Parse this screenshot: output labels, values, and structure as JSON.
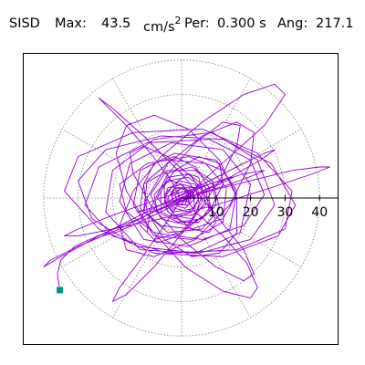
{
  "header": {
    "station": "SISD",
    "max_label": "Max:",
    "max_value": "43.5",
    "max_unit": "cm/s",
    "max_unit_exp": "2",
    "per_label": "Per:",
    "per_value": "0.300 s",
    "ang_label": "Ang:",
    "ang_value": "217.1"
  },
  "chart_data": {
    "type": "polar-orbit",
    "title": "SISD Max: 43.5 cm/s2 Per: 0.300 s Ang: 217.1",
    "rings": [
      10,
      20,
      30,
      40
    ],
    "tick_labels": [
      "10",
      "20",
      "30",
      "40"
    ],
    "xlim": [
      -46,
      46
    ],
    "ylim": [
      -46,
      46
    ],
    "grid": true,
    "colors": {
      "trace": "#9400d3",
      "end_marker": "#009a7a",
      "grid": "#808080",
      "axis": "#000000"
    },
    "end_point": {
      "x": -35.3,
      "y": -26.7
    },
    "trace": [
      [
        0,
        0
      ],
      [
        2,
        1
      ],
      [
        1,
        -2
      ],
      [
        -3,
        -1
      ],
      [
        -2,
        3
      ],
      [
        3,
        2
      ],
      [
        4,
        -3
      ],
      [
        -2,
        -4
      ],
      [
        -5,
        1
      ],
      [
        -1,
        5
      ],
      [
        4,
        4
      ],
      [
        6,
        -1
      ],
      [
        3,
        -6
      ],
      [
        -3,
        -5
      ],
      [
        -7,
        0
      ],
      [
        -4,
        6
      ],
      [
        2,
        7
      ],
      [
        7,
        3
      ],
      [
        8,
        -4
      ],
      [
        2,
        -8
      ],
      [
        -6,
        -6
      ],
      [
        -9,
        1
      ],
      [
        -5,
        7
      ],
      [
        3,
        9
      ],
      [
        9,
        5
      ],
      [
        11,
        -3
      ],
      [
        6,
        -9
      ],
      [
        -4,
        -10
      ],
      [
        -11,
        -4
      ],
      [
        -10,
        5
      ],
      [
        -3,
        11
      ],
      [
        7,
        10
      ],
      [
        13,
        3
      ],
      [
        12,
        -7
      ],
      [
        3,
        -12
      ],
      [
        -8,
        -11
      ],
      [
        -14,
        -2
      ],
      [
        -12,
        8
      ],
      [
        -2,
        13
      ],
      [
        10,
        11
      ],
      [
        16,
        2
      ],
      [
        14,
        -9
      ],
      [
        2,
        -14
      ],
      [
        -11,
        -12
      ],
      [
        -18,
        -1
      ],
      [
        -15,
        10
      ],
      [
        -3,
        16
      ],
      [
        12,
        14
      ],
      [
        20,
        4
      ],
      [
        17,
        -10
      ],
      [
        4,
        -16
      ],
      [
        -12,
        -15
      ],
      [
        -22,
        -4
      ],
      [
        -20,
        8
      ],
      [
        -8,
        17
      ],
      [
        9,
        19
      ],
      [
        22,
        11
      ],
      [
        27,
        -2
      ],
      [
        20,
        -12
      ],
      [
        5,
        -16
      ],
      [
        -13,
        -14
      ],
      [
        -26,
        -6
      ],
      [
        -30,
        5
      ],
      [
        -22,
        14
      ],
      [
        -6,
        18
      ],
      [
        12,
        17
      ],
      [
        26,
        10
      ],
      [
        33,
        -2
      ],
      [
        28,
        -11
      ],
      [
        12,
        -17
      ],
      [
        -8,
        -16
      ],
      [
        -24,
        -9
      ],
      [
        -34,
        2
      ],
      [
        -30,
        12
      ],
      [
        -14,
        19
      ],
      [
        6,
        20
      ],
      [
        22,
        13
      ],
      [
        32,
        2
      ],
      [
        30,
        -9
      ],
      [
        16,
        -15
      ],
      [
        -4,
        -16
      ],
      [
        -20,
        -11
      ],
      [
        -28,
        -2
      ],
      [
        -24,
        9
      ],
      [
        -10,
        16
      ],
      [
        8,
        17
      ],
      [
        20,
        11
      ],
      [
        24,
        1
      ],
      [
        18,
        -8
      ],
      [
        6,
        -12
      ],
      [
        -8,
        -10
      ],
      [
        -16,
        -4
      ],
      [
        -18,
        4
      ],
      [
        -10,
        10
      ],
      [
        2,
        12
      ],
      [
        12,
        8
      ],
      [
        16,
        1
      ],
      [
        12,
        -6
      ],
      [
        3,
        -9
      ],
      [
        -6,
        -8
      ],
      [
        -12,
        -3
      ],
      [
        -11,
        4
      ],
      [
        -4,
        8
      ],
      [
        4,
        8
      ],
      [
        9,
        4
      ],
      [
        10,
        -2
      ],
      [
        6,
        -6
      ],
      [
        -1,
        -7
      ],
      [
        -7,
        -4
      ],
      [
        -8,
        1
      ],
      [
        -4,
        5
      ],
      [
        2,
        6
      ],
      [
        6,
        3
      ],
      [
        7,
        -2
      ],
      [
        3,
        -5
      ],
      [
        -2,
        -5
      ],
      [
        -5,
        -1
      ],
      [
        -4,
        3
      ],
      [
        0,
        4
      ],
      [
        4,
        3
      ],
      [
        5,
        -1
      ],
      [
        2,
        -4
      ],
      [
        -2,
        -3
      ],
      [
        -4,
        0
      ],
      [
        -2,
        3
      ],
      [
        2,
        3
      ],
      [
        4,
        0
      ],
      [
        1,
        -3
      ],
      [
        -2,
        -2
      ],
      [
        -3,
        1
      ],
      [
        0,
        3
      ],
      [
        3,
        1
      ],
      [
        2,
        -2
      ],
      [
        -1,
        -2
      ],
      [
        -2,
        1
      ],
      [
        1,
        2
      ],
      [
        2,
        0
      ],
      [
        0,
        -1
      ],
      [
        5,
        4
      ],
      [
        14,
        12
      ],
      [
        24,
        21
      ],
      [
        30,
        30
      ],
      [
        27,
        33
      ],
      [
        18,
        30
      ],
      [
        6,
        22
      ],
      [
        -6,
        12
      ],
      [
        -14,
        2
      ],
      [
        -18,
        -8
      ],
      [
        -16,
        -15
      ],
      [
        -8,
        -17
      ],
      [
        4,
        -12
      ],
      [
        14,
        -2
      ],
      [
        20,
        10
      ],
      [
        21,
        19
      ],
      [
        16,
        22
      ],
      [
        6,
        18
      ],
      [
        -4,
        10
      ],
      [
        -10,
        0
      ],
      [
        -12,
        -8
      ],
      [
        -8,
        -12
      ],
      [
        0,
        -10
      ],
      [
        8,
        -4
      ],
      [
        12,
        4
      ],
      [
        11,
        10
      ],
      [
        5,
        12
      ],
      [
        -2,
        8
      ],
      [
        -6,
        2
      ],
      [
        -6,
        -4
      ],
      [
        -2,
        -6
      ],
      [
        3,
        -4
      ],
      [
        5,
        0
      ],
      [
        4,
        3
      ],
      [
        0,
        3
      ],
      [
        -2,
        1
      ],
      [
        -1,
        -1
      ],
      [
        0,
        0
      ],
      [
        -6,
        -3
      ],
      [
        -18,
        -9
      ],
      [
        -30,
        -14
      ],
      [
        -38,
        -18
      ],
      [
        -40,
        -20
      ],
      [
        -35,
        -17
      ],
      [
        -24,
        -11
      ],
      [
        -10,
        -4
      ],
      [
        4,
        3
      ],
      [
        16,
        9
      ],
      [
        24,
        13
      ],
      [
        27,
        14
      ],
      [
        23,
        11
      ],
      [
        14,
        6
      ],
      [
        2,
        0
      ],
      [
        -10,
        -6
      ],
      [
        -19,
        -10
      ],
      [
        -23,
        -11
      ],
      [
        -20,
        -9
      ],
      [
        -12,
        -5
      ],
      [
        -2,
        0
      ],
      [
        8,
        4
      ],
      [
        14,
        6
      ],
      [
        15,
        6
      ],
      [
        11,
        4
      ],
      [
        4,
        1
      ],
      [
        -3,
        -2
      ],
      [
        -8,
        -4
      ],
      [
        -9,
        -4
      ],
      [
        -6,
        -3
      ],
      [
        -2,
        -1
      ],
      [
        2,
        1
      ],
      [
        4,
        2
      ],
      [
        3,
        1
      ],
      [
        1,
        0
      ],
      [
        4,
        -4
      ],
      [
        12,
        -11
      ],
      [
        19,
        -19
      ],
      [
        22,
        -26
      ],
      [
        20,
        -29
      ],
      [
        12,
        -27
      ],
      [
        1,
        -20
      ],
      [
        -9,
        -9
      ],
      [
        -16,
        2
      ],
      [
        -19,
        13
      ],
      [
        -16,
        21
      ],
      [
        -8,
        24
      ],
      [
        2,
        20
      ],
      [
        11,
        11
      ],
      [
        16,
        0
      ],
      [
        16,
        -10
      ],
      [
        11,
        -16
      ],
      [
        3,
        -17
      ],
      [
        -5,
        -12
      ],
      [
        -10,
        -4
      ],
      [
        -11,
        4
      ],
      [
        -8,
        10
      ],
      [
        -2,
        12
      ],
      [
        4,
        9
      ],
      [
        8,
        3
      ],
      [
        8,
        -3
      ],
      [
        5,
        -7
      ],
      [
        0,
        -7
      ],
      [
        -4,
        -4
      ],
      [
        -5,
        0
      ],
      [
        -3,
        3
      ],
      [
        0,
        4
      ],
      [
        2,
        2
      ],
      [
        2,
        0
      ],
      [
        0,
        -1
      ],
      [
        -3,
        5
      ],
      [
        -9,
        13
      ],
      [
        -16,
        21
      ],
      [
        -22,
        27
      ],
      [
        -24,
        29
      ],
      [
        -20,
        26
      ],
      [
        -11,
        18
      ],
      [
        0,
        7
      ],
      [
        10,
        -5
      ],
      [
        18,
        -15
      ],
      [
        21,
        -22
      ],
      [
        18,
        -24
      ],
      [
        10,
        -20
      ],
      [
        0,
        -12
      ],
      [
        -9,
        -2
      ],
      [
        -14,
        7
      ],
      [
        -15,
        13
      ],
      [
        -11,
        15
      ],
      [
        -4,
        12
      ],
      [
        3,
        6
      ],
      [
        8,
        -1
      ],
      [
        10,
        -7
      ],
      [
        8,
        -10
      ],
      [
        3,
        -9
      ],
      [
        -2,
        -5
      ],
      [
        -5,
        0
      ],
      [
        -5,
        4
      ],
      [
        -3,
        5
      ],
      [
        0,
        4
      ],
      [
        2,
        1
      ],
      [
        2,
        -1
      ],
      [
        0,
        -1
      ],
      [
        8,
        2
      ],
      [
        20,
        5
      ],
      [
        32,
        8
      ],
      [
        40,
        9
      ],
      [
        43,
        9
      ],
      [
        38,
        7
      ],
      [
        26,
        3
      ],
      [
        10,
        -2
      ],
      [
        -6,
        -6
      ],
      [
        -20,
        -9
      ],
      [
        -30,
        -11
      ],
      [
        -34,
        -11
      ],
      [
        -30,
        -9
      ],
      [
        -20,
        -5
      ],
      [
        -6,
        0
      ],
      [
        8,
        4
      ],
      [
        18,
        7
      ],
      [
        24,
        8
      ],
      [
        22,
        7
      ],
      [
        14,
        4
      ],
      [
        4,
        1
      ],
      [
        -6,
        -2
      ],
      [
        -12,
        -4
      ],
      [
        -13,
        -4
      ],
      [
        -9,
        -3
      ],
      [
        -3,
        -1
      ],
      [
        2,
        1
      ],
      [
        5,
        1
      ],
      [
        4,
        1
      ],
      [
        2,
        0
      ],
      [
        0,
        0
      ],
      [
        -5,
        -8
      ],
      [
        -12,
        -18
      ],
      [
        -18,
        -26
      ],
      [
        -20,
        -30
      ],
      [
        -16,
        -28
      ],
      [
        -8,
        -20
      ],
      [
        2,
        -8
      ],
      [
        11,
        5
      ],
      [
        16,
        15
      ],
      [
        17,
        21
      ],
      [
        12,
        22
      ],
      [
        4,
        16
      ],
      [
        -4,
        7
      ],
      [
        -9,
        -3
      ],
      [
        -10,
        -10
      ],
      [
        -7,
        -13
      ],
      [
        -1,
        -11
      ],
      [
        4,
        -5
      ],
      [
        6,
        1
      ],
      [
        5,
        6
      ],
      [
        2,
        7
      ],
      [
        -1,
        5
      ],
      [
        -3,
        1
      ],
      [
        -2,
        -2
      ],
      [
        0,
        -2
      ],
      [
        1,
        0
      ],
      [
        0,
        0
      ],
      [
        -10,
        -5
      ],
      [
        -22,
        -10
      ],
      [
        -31,
        -14
      ],
      [
        -35,
        -18
      ],
      [
        -36,
        -22
      ],
      [
        -35.3,
        -26.7
      ]
    ]
  }
}
